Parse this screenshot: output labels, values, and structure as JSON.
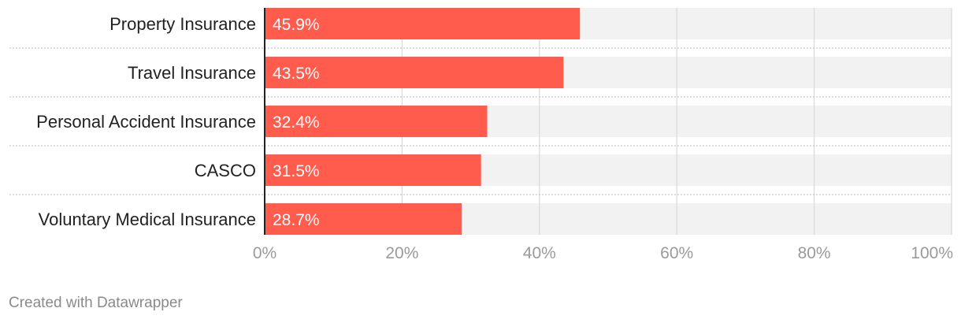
{
  "chart_data": {
    "type": "bar",
    "orientation": "horizontal",
    "categories": [
      "Property Insurance",
      "Travel Insurance",
      "Personal Accident Insurance",
      "CASCO",
      "Voluntary Medical Insurance"
    ],
    "values": [
      45.9,
      43.5,
      32.4,
      31.5,
      28.7
    ],
    "value_labels": [
      "45.9%",
      "43.5%",
      "32.4%",
      "31.5%",
      "28.7%"
    ],
    "xlim": [
      0,
      100
    ],
    "x_ticks": [
      0,
      20,
      40,
      60,
      80,
      100
    ],
    "x_tick_labels": [
      "0%",
      "20%",
      "40%",
      "60%",
      "80%",
      "100%"
    ],
    "grid": true,
    "title": "",
    "xlabel": "",
    "ylabel": "",
    "colors": {
      "bar": "#ff5c4d",
      "track": "#f2f2f2",
      "grid": "#d9d9d9",
      "axis": "#222222",
      "separator": "#bbbbbb"
    }
  },
  "footer": {
    "credit": "Created with Datawrapper"
  }
}
